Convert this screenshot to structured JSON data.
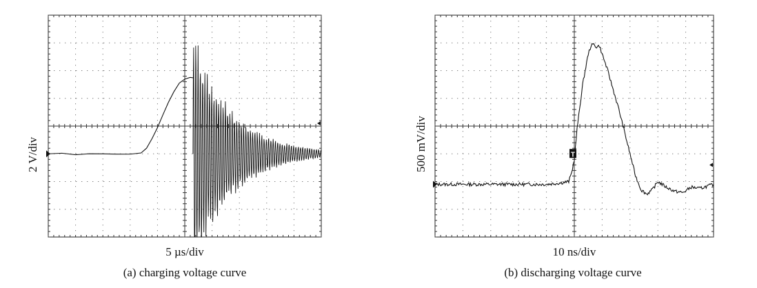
{
  "chart_data": [
    {
      "type": "line",
      "ylabel": "2 V/div",
      "xlabel": "5 µs/div",
      "caption": "(a) charging voltage curve",
      "grid": true,
      "divisions": {
        "x": 10,
        "y": 8
      },
      "xlim": [
        0,
        10
      ],
      "ylim": [
        -4,
        4
      ],
      "series": [
        {
          "x": [
            0,
            0.5,
            1,
            1.5,
            2,
            2.5,
            3,
            3.4,
            3.6,
            3.8,
            4.0,
            4.2,
            4.4,
            4.6,
            4.8,
            5.0,
            5.2,
            5.3,
            5.5,
            10
          ],
          "y": [
            -1.0,
            -0.98,
            -1.02,
            -0.99,
            -1.0,
            -1.01,
            -1.0,
            -0.98,
            -0.8,
            -0.45,
            -0.05,
            0.4,
            0.85,
            1.25,
            1.55,
            1.7,
            1.75,
            1.75,
            -1.0,
            -1.0
          ]
        }
      ],
      "ringing": {
        "start_x": 5.3,
        "end_x": 10,
        "baseline_y": -1.0,
        "initial_amplitude_y": 4.5,
        "decay_time_div": 1.4
      },
      "channel_marker_y": -1.0,
      "trigger_arrow_y": 0.1
    },
    {
      "type": "line",
      "ylabel": "500 mV/div",
      "xlabel": "10 ns/div",
      "caption": "(b) discharging voltage curve",
      "grid": true,
      "divisions": {
        "x": 10,
        "y": 8
      },
      "xlim": [
        0,
        10
      ],
      "ylim": [
        -4,
        4
      ],
      "series": [
        {
          "x": [
            0,
            1,
            2,
            3,
            4,
            4.5,
            4.8,
            4.9,
            5.0,
            5.1,
            5.3,
            5.5,
            5.6,
            5.7,
            5.8,
            5.9,
            6.0,
            6.2,
            6.4,
            6.6,
            6.8,
            7.0,
            7.2,
            7.4,
            7.6,
            7.8,
            8.0,
            8.3,
            8.6,
            8.9,
            9.2,
            9.5,
            10
          ],
          "y": [
            -2.1,
            -2.1,
            -2.1,
            -2.1,
            -2.1,
            -2.05,
            -2.0,
            -1.7,
            -1.2,
            -0.1,
            1.5,
            2.6,
            2.9,
            2.95,
            2.85,
            2.9,
            2.6,
            2.0,
            1.3,
            0.6,
            -0.2,
            -1.0,
            -1.8,
            -2.3,
            -2.45,
            -2.3,
            -2.0,
            -2.2,
            -2.35,
            -2.4,
            -2.2,
            -2.25,
            -2.1
          ]
        }
      ],
      "trigger_marker_x": 4.95,
      "trigger_marker_y": -1.0,
      "trigger_marker_label": "T",
      "channel_marker_y": -2.1,
      "trigger_arrow_y": -1.4
    }
  ]
}
